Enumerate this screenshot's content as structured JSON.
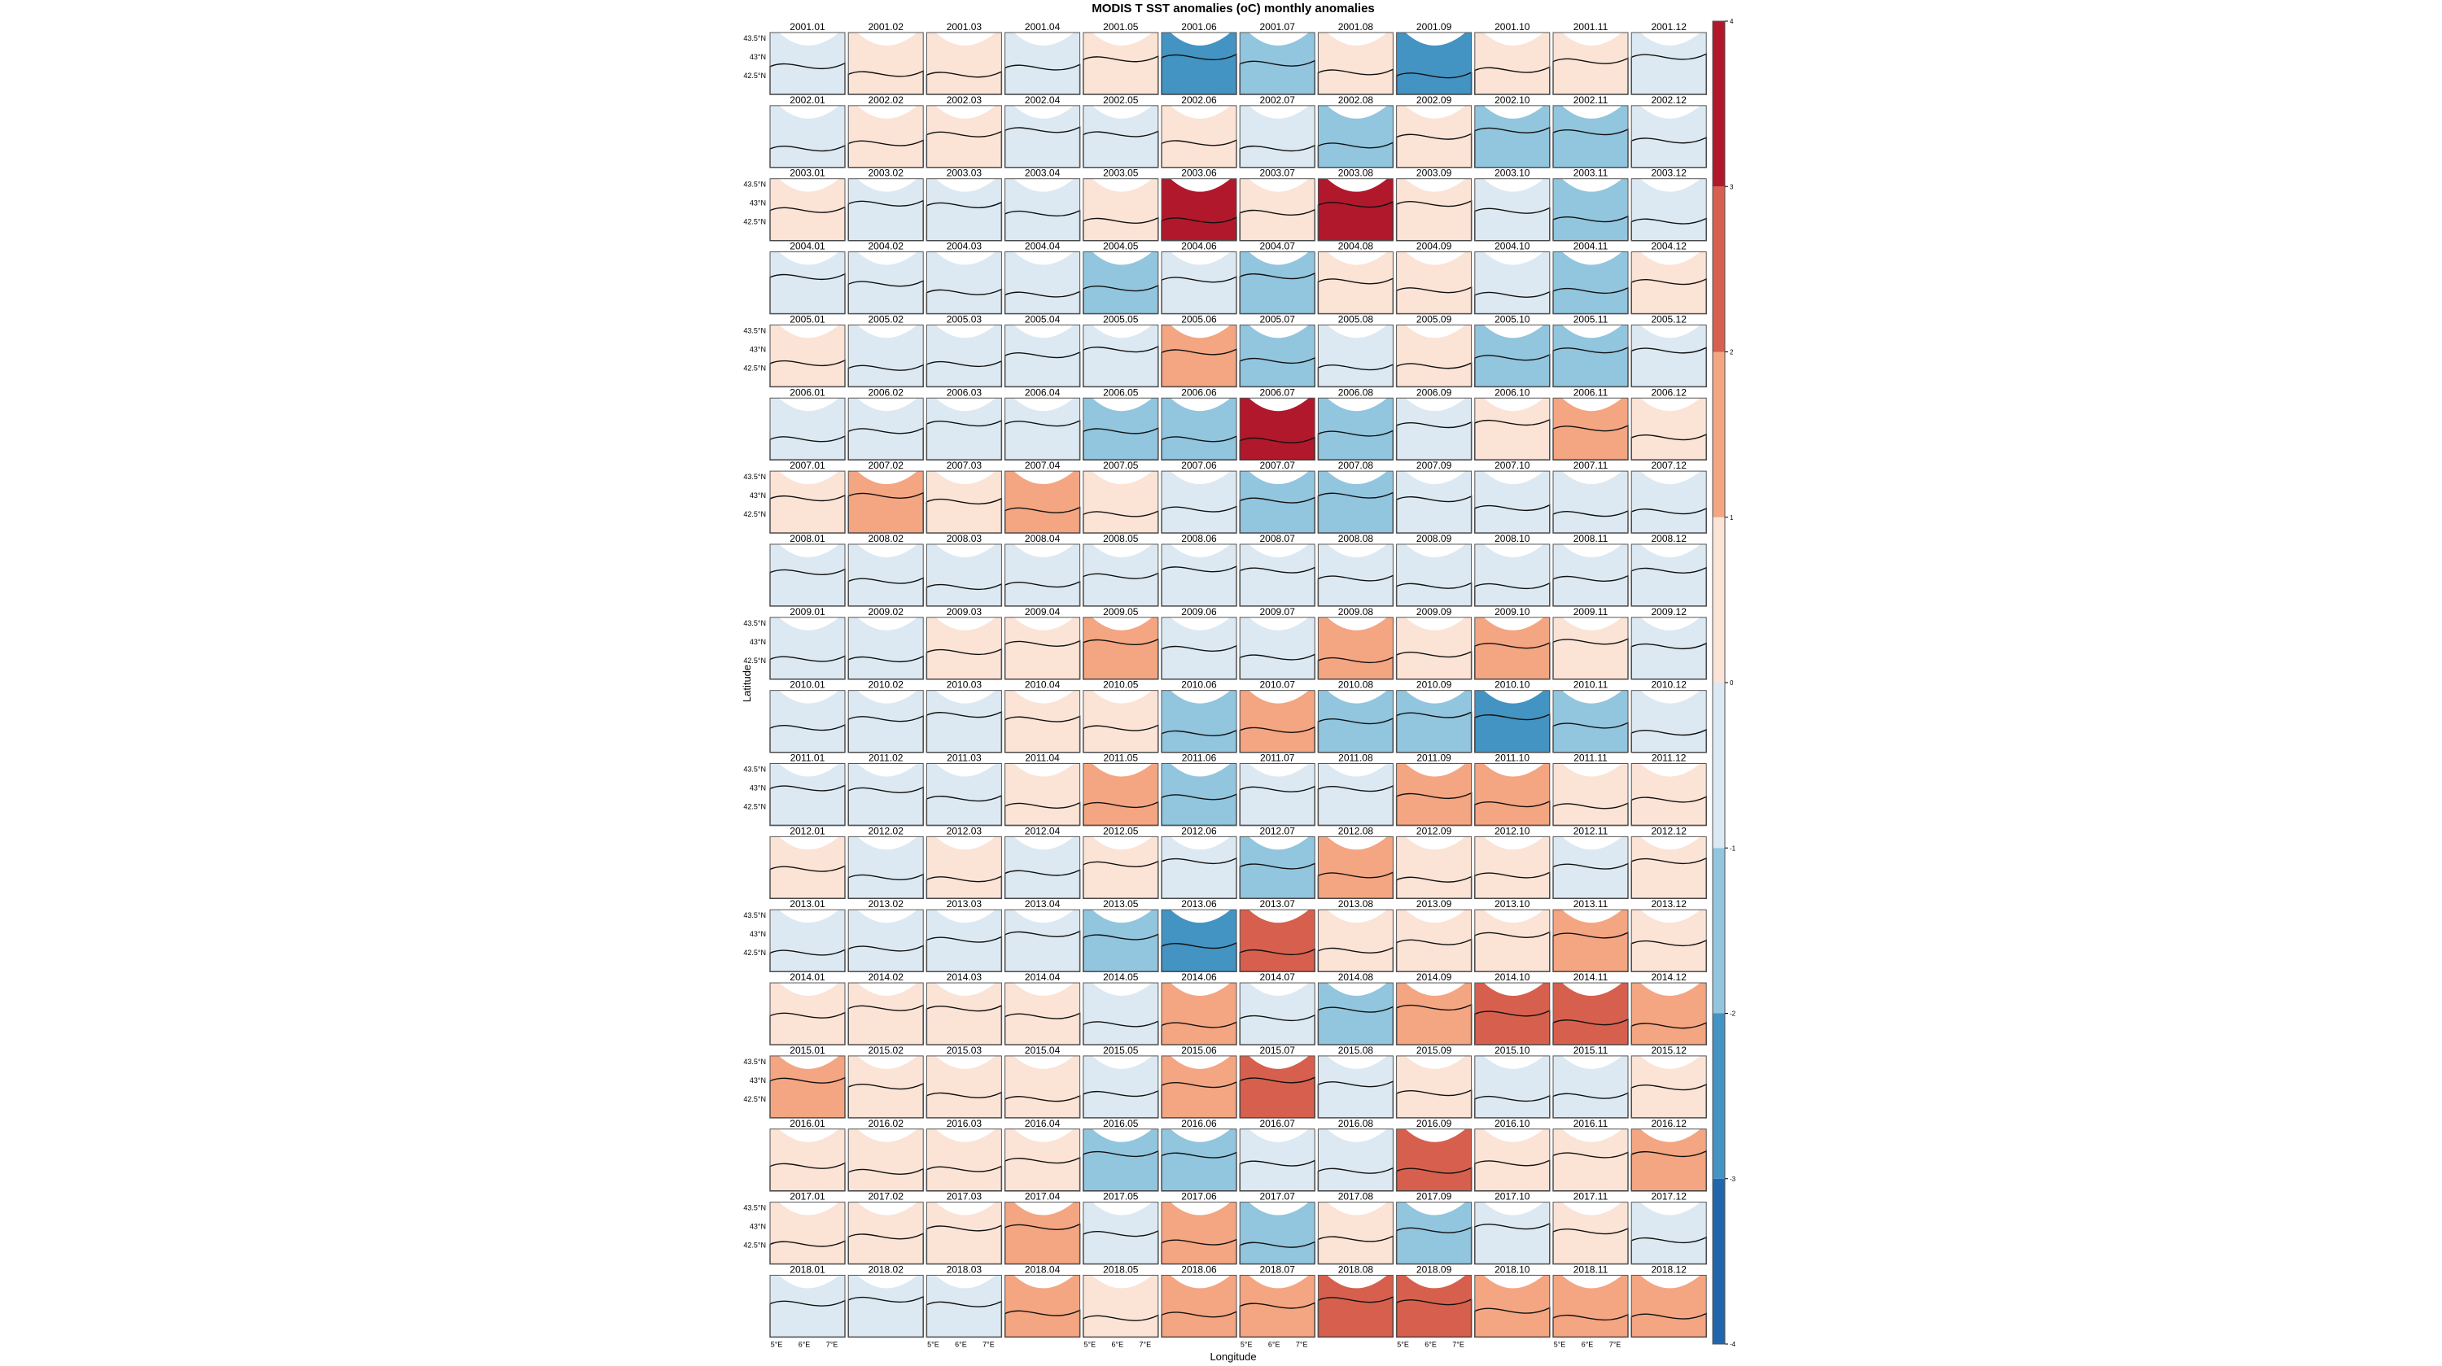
{
  "chart_data": {
    "type": "heatmap",
    "title": "MODIS T SST anomalies (oC) monthly anomalies",
    "xlabel": "Longitude",
    "ylabel": "Latitude",
    "x_ticks": [
      "5°E",
      "6°E",
      "7°E"
    ],
    "y_ticks": [
      "43.5°N",
      "43°N",
      "42.5°N"
    ],
    "years": [
      2001,
      2002,
      2003,
      2004,
      2005,
      2006,
      2007,
      2008,
      2009,
      2010,
      2011,
      2012,
      2013,
      2014,
      2015,
      2016,
      2017,
      2018
    ],
    "months": [
      "01",
      "02",
      "03",
      "04",
      "05",
      "06",
      "07",
      "08",
      "09",
      "10",
      "11",
      "12"
    ],
    "colorbar": {
      "range": [
        -4,
        4
      ],
      "ticks": [
        "-4",
        "-3",
        "-2",
        "-1",
        "0",
        "1",
        "2",
        "3",
        "4"
      ],
      "colors": [
        "#2166ac",
        "#4393c3",
        "#92c5de",
        "#dce9f2",
        "#fbe3d6",
        "#f4a582",
        "#d6604d",
        "#b2182b"
      ]
    },
    "anomalies": [
      [
        -0.4,
        0.4,
        0.3,
        -0.5,
        0.8,
        -2.2,
        -1.2,
        0.8,
        -2.6,
        0.5,
        0.3,
        -0.4
      ],
      [
        -0.6,
        0.6,
        0.5,
        -0.6,
        -0.6,
        0.9,
        -0.7,
        -1.2,
        0.7,
        -1.4,
        -1.3,
        -0.6
      ],
      [
        0.5,
        -0.6,
        -0.4,
        -0.5,
        0.8,
        3.2,
        0.8,
        3.5,
        0.7,
        -1.0,
        -1.5,
        -0.6
      ],
      [
        -0.7,
        -0.5,
        -0.6,
        -0.5,
        -1.2,
        -1.0,
        -1.4,
        0.7,
        0.4,
        -0.8,
        -1.1,
        0.6
      ],
      [
        0.4,
        -0.5,
        -0.5,
        -0.5,
        -0.8,
        1.4,
        -1.6,
        -1.0,
        0.9,
        -1.2,
        -1.3,
        -0.6
      ],
      [
        -0.5,
        -0.5,
        -0.5,
        -0.6,
        -1.2,
        -1.5,
        3.6,
        -1.4,
        -0.7,
        0.5,
        1.3,
        0.8
      ],
      [
        0.6,
        1.1,
        0.5,
        1.5,
        0.8,
        -0.8,
        -1.5,
        -1.7,
        -0.8,
        -0.8,
        -0.7,
        -0.6
      ],
      [
        -0.5,
        -0.6,
        -0.6,
        -0.5,
        -0.8,
        -0.7,
        -0.9,
        -0.8,
        -0.8,
        -0.9,
        -0.7,
        -0.8
      ],
      [
        -0.5,
        -0.5,
        0.4,
        0.5,
        1.3,
        -0.6,
        -0.7,
        1.1,
        0.9,
        1.4,
        0.6,
        -0.5
      ],
      [
        -0.5,
        -0.5,
        -0.5,
        0.5,
        0.8,
        -1.2,
        1.6,
        -1.5,
        -1.8,
        -2.3,
        -1.1,
        -0.8
      ],
      [
        -0.5,
        -0.5,
        -0.5,
        0.4,
        1.4,
        -1.2,
        -0.9,
        -0.8,
        1.6,
        1.6,
        0.6,
        0.4
      ],
      [
        0.4,
        -0.5,
        0.4,
        -0.5,
        0.9,
        -1.0,
        -1.2,
        1.4,
        0.8,
        0.8,
        -0.6,
        0.5
      ],
      [
        -0.6,
        -0.6,
        -0.6,
        -0.5,
        -1.7,
        -2.2,
        2.2,
        0.8,
        0.7,
        0.9,
        1.1,
        0.5
      ],
      [
        0.5,
        0.6,
        0.5,
        0.5,
        -0.8,
        1.5,
        -1.0,
        -1.1,
        1.4,
        2.3,
        2.5,
        1.7
      ],
      [
        1.5,
        0.5,
        0.6,
        0.5,
        -0.7,
        1.3,
        2.6,
        -1.0,
        0.8,
        -0.7,
        -0.7,
        0.4
      ],
      [
        0.4,
        0.5,
        0.6,
        0.5,
        -1.2,
        -1.4,
        -0.8,
        -0.6,
        2.1,
        0.8,
        0.6,
        1.3
      ],
      [
        0.8,
        0.6,
        0.6,
        1.3,
        -0.9,
        1.6,
        -1.1,
        0.9,
        -1.7,
        -0.6,
        0.5,
        -0.5
      ],
      [
        -0.5,
        -0.5,
        -0.5,
        1.0,
        0.9,
        1.5,
        1.5,
        2.7,
        2.2,
        1.3,
        1.1,
        1.0
      ]
    ]
  }
}
